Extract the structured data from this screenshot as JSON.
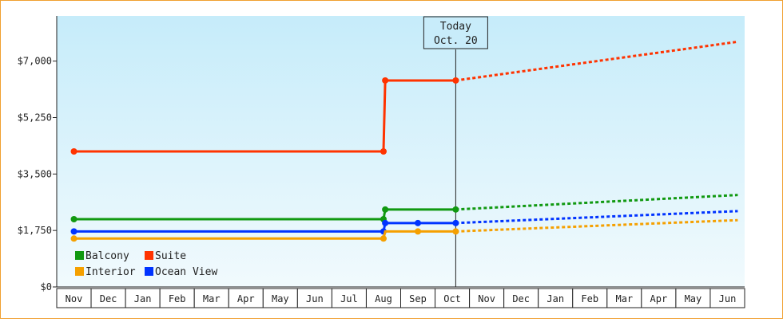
{
  "chart_data": {
    "type": "line",
    "title": "",
    "xlabel": "",
    "ylabel": "",
    "ylim": [
      0,
      8400
    ],
    "yticks": [
      0,
      1750,
      3500,
      5250,
      7000
    ],
    "ytick_labels": [
      "$0",
      "$1,750",
      "$3,500",
      "$5,250",
      "$7,000"
    ],
    "x_categories": [
      "Nov",
      "Dec",
      "Jan",
      "Feb",
      "Mar",
      "Apr",
      "May",
      "Jun",
      "Jul",
      "Aug",
      "Sep",
      "Oct",
      "Nov",
      "Dec",
      "Jan",
      "Feb",
      "Mar",
      "Apr",
      "May",
      "Jun"
    ],
    "grid": false,
    "legend_position": "bottom-left",
    "today": {
      "label": "Today",
      "date": "Oct. 20",
      "x": 11.1
    },
    "series": [
      {
        "name": "Suite",
        "color": "#ff3300",
        "points": [
          [
            0,
            4200
          ],
          [
            9,
            4200
          ],
          [
            9.05,
            6400
          ],
          [
            11.1,
            6400
          ]
        ],
        "markers": [
          [
            0,
            4200
          ],
          [
            9,
            4200
          ],
          [
            9.05,
            6400
          ],
          [
            11.1,
            6400
          ]
        ],
        "forecast": [
          [
            11.1,
            6400
          ],
          [
            19.3,
            7600
          ]
        ]
      },
      {
        "name": "Balcony",
        "color": "#119911",
        "points": [
          [
            0,
            2100
          ],
          [
            9,
            2100
          ],
          [
            9.05,
            2400
          ],
          [
            11.1,
            2400
          ]
        ],
        "markers": [
          [
            0,
            2100
          ],
          [
            9,
            2100
          ],
          [
            9.05,
            2400
          ],
          [
            11.1,
            2400
          ]
        ],
        "forecast": [
          [
            11.1,
            2400
          ],
          [
            19.3,
            2850
          ]
        ]
      },
      {
        "name": "Ocean View",
        "color": "#0033ff",
        "points": [
          [
            0,
            1720
          ],
          [
            9,
            1720
          ],
          [
            9.05,
            1980
          ],
          [
            11.1,
            1980
          ]
        ],
        "markers": [
          [
            0,
            1720
          ],
          [
            9,
            1720
          ],
          [
            9.05,
            1980
          ],
          [
            10,
            1980
          ],
          [
            11.1,
            1980
          ]
        ],
        "forecast": [
          [
            11.1,
            1980
          ],
          [
            19.3,
            2350
          ]
        ]
      },
      {
        "name": "Interior",
        "color": "#f5a000",
        "points": [
          [
            0,
            1500
          ],
          [
            9,
            1500
          ],
          [
            9.05,
            1720
          ],
          [
            11.1,
            1720
          ]
        ],
        "markers": [
          [
            0,
            1500
          ],
          [
            9,
            1500
          ],
          [
            10,
            1720
          ],
          [
            11.1,
            1720
          ]
        ],
        "forecast": [
          [
            11.1,
            1720
          ],
          [
            19.3,
            2070
          ]
        ]
      }
    ],
    "legend": [
      {
        "name": "Balcony",
        "color": "#119911"
      },
      {
        "name": "Suite",
        "color": "#ff3300"
      },
      {
        "name": "Interior",
        "color": "#f5a000"
      },
      {
        "name": "Ocean View",
        "color": "#0033ff"
      }
    ],
    "background_gradient": [
      "#c6ecfa",
      "#f1fafd"
    ]
  }
}
